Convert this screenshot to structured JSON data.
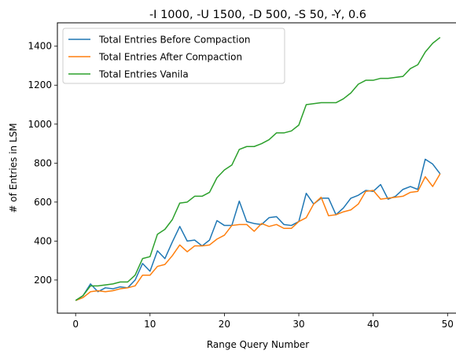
{
  "chart_data": {
    "type": "line",
    "title": "-I 1000, -U 1500, -D 500, -S 50, -Y, 0.6",
    "xlabel": "Range Query Number",
    "ylabel": "# of Entries in LSM",
    "xlim": [
      -2.45,
      51.45
    ],
    "ylim": [
      30,
      1520
    ],
    "xticks": [
      0,
      10,
      20,
      30,
      40,
      50
    ],
    "yticks": [
      200,
      400,
      600,
      800,
      1000,
      1200,
      1400
    ],
    "legend_position": "upper-left",
    "grid": false,
    "x": [
      0,
      1,
      2,
      3,
      4,
      5,
      6,
      7,
      8,
      9,
      10,
      11,
      12,
      13,
      14,
      15,
      16,
      17,
      18,
      19,
      20,
      21,
      22,
      23,
      24,
      25,
      26,
      27,
      28,
      29,
      30,
      31,
      32,
      33,
      34,
      35,
      36,
      37,
      38,
      39,
      40,
      41,
      42,
      43,
      44,
      45,
      46,
      47,
      48,
      49
    ],
    "series": [
      {
        "name": "Total Entries Before Compaction",
        "color": "#1f77b4",
        "values": [
          95,
          120,
          180,
          140,
          160,
          155,
          165,
          160,
          200,
          285,
          245,
          350,
          310,
          395,
          475,
          400,
          405,
          375,
          405,
          505,
          480,
          480,
          605,
          500,
          490,
          485,
          520,
          525,
          485,
          480,
          500,
          645,
          590,
          620,
          620,
          535,
          570,
          620,
          635,
          660,
          655,
          690,
          615,
          630,
          665,
          680,
          665,
          820,
          795,
          745
        ]
      },
      {
        "name": "Total Entries After Compaction",
        "color": "#ff7f0e",
        "values": [
          95,
          110,
          140,
          145,
          140,
          145,
          155,
          160,
          170,
          225,
          225,
          270,
          280,
          325,
          380,
          345,
          375,
          375,
          380,
          410,
          430,
          480,
          485,
          485,
          450,
          490,
          475,
          485,
          465,
          465,
          500,
          520,
          590,
          625,
          530,
          535,
          550,
          560,
          590,
          655,
          660,
          615,
          620,
          625,
          630,
          650,
          655,
          730,
          680,
          745
        ]
      },
      {
        "name": "Total Entries Vanila",
        "color": "#2ca02c",
        "values": [
          95,
          120,
          170,
          170,
          175,
          180,
          190,
          190,
          225,
          310,
          320,
          435,
          460,
          510,
          595,
          600,
          630,
          630,
          650,
          725,
          765,
          790,
          870,
          885,
          885,
          900,
          920,
          955,
          955,
          965,
          995,
          1100,
          1105,
          1110,
          1110,
          1110,
          1130,
          1160,
          1205,
          1225,
          1225,
          1235,
          1235,
          1240,
          1245,
          1285,
          1305,
          1370,
          1415,
          1445
        ]
      }
    ]
  }
}
